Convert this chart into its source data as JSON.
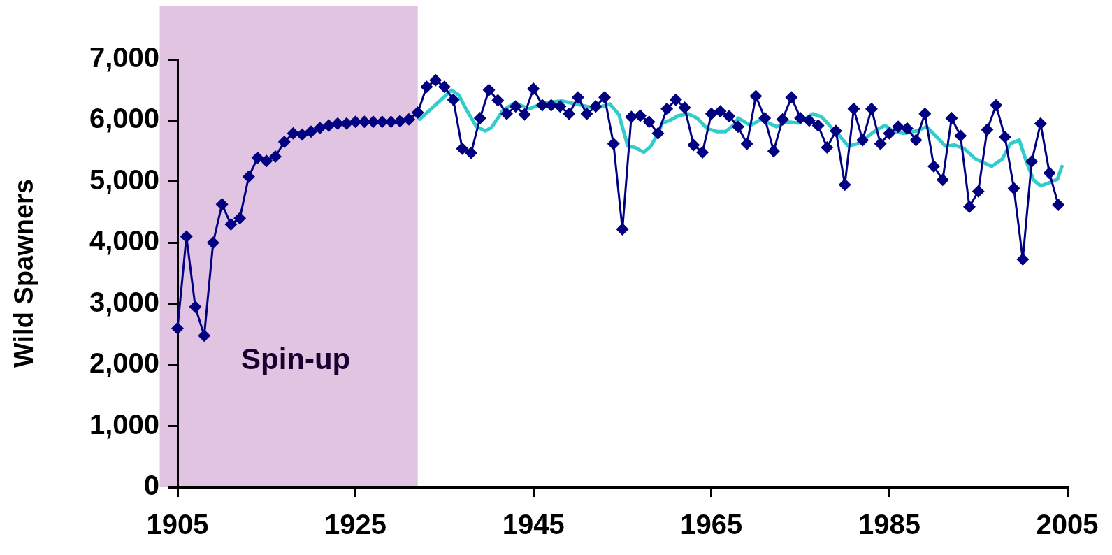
{
  "chart_data": {
    "type": "line",
    "ylabel": "Wild Spawners",
    "xlim": [
      1905,
      2005
    ],
    "xticks": [
      1905,
      1925,
      1945,
      1965,
      1985,
      2005
    ],
    "ylim": [
      0,
      7000
    ],
    "yticks": [
      {
        "value": 0,
        "label": "0"
      },
      {
        "value": 1000,
        "label": "1,000"
      },
      {
        "value": 2000,
        "label": "2,000"
      },
      {
        "value": 3000,
        "label": "3,000"
      },
      {
        "value": 4000,
        "label": "4,000"
      },
      {
        "value": 5000,
        "label": "5,000"
      },
      {
        "value": 6000,
        "label": "6,000"
      },
      {
        "value": 7000,
        "label": "7,000"
      }
    ],
    "grid": false,
    "legend": false,
    "bands": [
      {
        "axis": "x",
        "from": 1903,
        "to": 1932,
        "label": "Spin-up",
        "color": "#e0c4e2"
      }
    ],
    "series": [
      {
        "color": "#33cccc",
        "marker": "none",
        "x": [
          1932.2,
          1933.5,
          1935.8,
          1936.6,
          1937.5,
          1938.6,
          1939.6,
          1940.3,
          1941.6,
          1942.9,
          1944.5,
          1946.2,
          1948.2,
          1950.4,
          1952.0,
          1953.6,
          1954.6,
          1955.2,
          1955.6,
          1956.4,
          1957.4,
          1958.2,
          1959.0,
          1959.5,
          1960.3,
          1961.3,
          1962.4,
          1963.4,
          1964.5,
          1965.6,
          1966.6,
          1967.6,
          1968.0,
          1969.4,
          1970.6,
          1972.3,
          1973.4,
          1974.8,
          1976.4,
          1977.4,
          1978.4,
          1979.4,
          1980.4,
          1981.4,
          1982.5,
          1983.4,
          1984.5,
          1985.4,
          1986.6,
          1988.1,
          1989.2,
          1990.2,
          1991.3,
          1992.3,
          1993.4,
          1994.7,
          1996.5,
          1997.7,
          1998.6,
          1999.6,
          2000.4,
          2001.2,
          2002.0,
          2003.1,
          2003.9,
          2004.4
        ],
        "values": [
          6020,
          6190,
          6500,
          6420,
          6170,
          5900,
          5830,
          5890,
          6170,
          6290,
          6190,
          6290,
          6320,
          6250,
          6200,
          6270,
          6100,
          5790,
          5580,
          5560,
          5480,
          5580,
          5790,
          5960,
          6000,
          6080,
          6110,
          6040,
          5870,
          5820,
          5820,
          5940,
          6040,
          5920,
          6020,
          5900,
          5980,
          5960,
          6110,
          6060,
          5900,
          5750,
          5580,
          5620,
          5730,
          5830,
          5920,
          5830,
          5790,
          5830,
          5900,
          5750,
          5580,
          5600,
          5540,
          5370,
          5250,
          5370,
          5620,
          5680,
          5330,
          5030,
          4930,
          4990,
          5040,
          5250
        ]
      },
      {
        "color": "#000080",
        "marker": "diamond",
        "x": [
          1905,
          1906,
          1907,
          1908,
          1909,
          1910,
          1911,
          1912,
          1913,
          1914,
          1915,
          1916,
          1917,
          1918,
          1919,
          1920,
          1921,
          1922,
          1923,
          1924,
          1925,
          1926,
          1927,
          1928,
          1929,
          1930,
          1931,
          1932,
          1933,
          1934,
          1935,
          1936,
          1937,
          1938,
          1939,
          1940,
          1941,
          1942,
          1943,
          1944,
          1945,
          1946,
          1947,
          1948,
          1949,
          1950,
          1951,
          1952,
          1953,
          1954,
          1955,
          1956,
          1957,
          1958,
          1959,
          1960,
          1961,
          1962,
          1963,
          1964,
          1965,
          1966,
          1967,
          1968,
          1969,
          1970,
          1971,
          1972,
          1973,
          1974,
          1975,
          1976,
          1977,
          1978,
          1979,
          1980,
          1981,
          1982,
          1983,
          1984,
          1985,
          1986,
          1987,
          1988,
          1989,
          1990,
          1991,
          1992,
          1993,
          1994,
          1995,
          1996,
          1997,
          1998,
          1999,
          2000,
          2001,
          2002,
          2003,
          2004
        ],
        "values": [
          2600,
          4100,
          2950,
          2480,
          4000,
          4630,
          4300,
          4400,
          5080,
          5390,
          5340,
          5410,
          5650,
          5790,
          5770,
          5820,
          5880,
          5920,
          5950,
          5950,
          5980,
          5980,
          5980,
          5980,
          5980,
          5990,
          6020,
          6130,
          6550,
          6660,
          6550,
          6340,
          5540,
          5470,
          6040,
          6500,
          6330,
          6110,
          6230,
          6100,
          6520,
          6250,
          6250,
          6230,
          6110,
          6380,
          6110,
          6230,
          6380,
          5620,
          4220,
          6060,
          6080,
          5980,
          5790,
          6190,
          6340,
          6210,
          5600,
          5480,
          6110,
          6150,
          6070,
          5900,
          5620,
          6400,
          6040,
          5500,
          6020,
          6380,
          6040,
          6000,
          5920,
          5560,
          5830,
          4950,
          6190,
          5680,
          6190,
          5620,
          5790,
          5900,
          5870,
          5680,
          6110,
          5250,
          5030,
          6040,
          5750,
          4590,
          4840,
          5850,
          6250,
          5730,
          4890,
          3730,
          5330,
          5950,
          5140,
          4620
        ]
      }
    ]
  }
}
